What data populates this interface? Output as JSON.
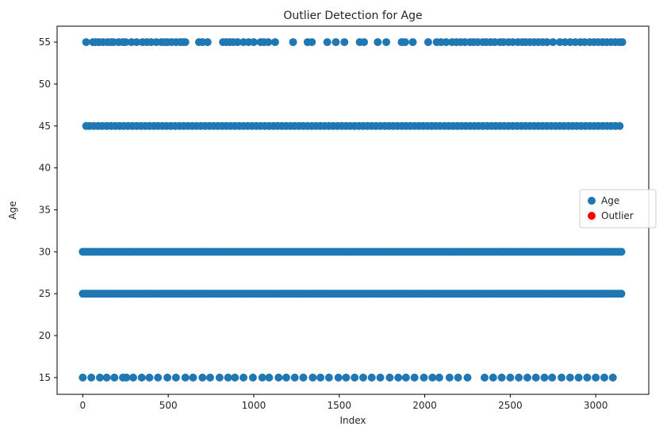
{
  "chart_data": {
    "type": "scatter",
    "title": "Outlier Detection for Age",
    "xlabel": "Index",
    "ylabel": "Age",
    "xlim": [
      -150,
      3310
    ],
    "ylim": [
      13.0,
      56.9
    ],
    "x_ticks": [
      0,
      500,
      1000,
      1500,
      2000,
      2500,
      3000
    ],
    "y_ticks": [
      15,
      20,
      25,
      30,
      35,
      40,
      45,
      50,
      55
    ],
    "grid": false,
    "legend_position": "center-right",
    "series": [
      {
        "name": "Age",
        "color": "#1f77b4",
        "marker": "circle",
        "y_levels": [
          {
            "y": 55,
            "x": [
              20,
              60,
              75,
              95,
              120,
              145,
              165,
              180,
              210,
              235,
              250,
              285,
              315,
              350,
              375,
              400,
              430,
              460,
              480,
              495,
              520,
              545,
              570,
              585,
              600,
              680,
              700,
              730,
              820,
              840,
              860,
              880,
              905,
              940,
              970,
              1000,
              1040,
              1060,
              1085,
              1125,
              1230,
              1315,
              1340,
              1430,
              1480,
              1530,
              1620,
              1645,
              1725,
              1775,
              1865,
              1885,
              1930,
              2020,
              2070,
              2095,
              2125,
              2160,
              2185,
              2210,
              2235,
              2265,
              2285,
              2310,
              2340,
              2360,
              2385,
              2410,
              2440,
              2460,
              2490,
              2515,
              2545,
              2570,
              2590,
              2615,
              2640,
              2665,
              2690,
              2715,
              2750,
              2790,
              2820,
              2850,
              2880,
              2910,
              2935,
              2965,
              2990,
              3015,
              3040,
              3065,
              3090,
              3115,
              3140,
              3155
            ]
          },
          {
            "y": 45,
            "x": [
              20,
              40,
              65,
              90,
              115,
              140,
              165,
              190,
              215,
              240,
              265,
              290,
              315,
              340,
              365,
              390,
              415,
              440,
              465,
              490,
              515,
              540,
              565,
              590,
              615,
              640,
              665,
              690,
              715,
              740,
              765,
              790,
              815,
              840,
              865,
              890,
              915,
              940,
              965,
              990,
              1015,
              1040,
              1065,
              1090,
              1115,
              1140,
              1165,
              1190,
              1215,
              1240,
              1265,
              1290,
              1315,
              1340,
              1365,
              1390,
              1415,
              1440,
              1465,
              1490,
              1515,
              1540,
              1565,
              1590,
              1615,
              1640,
              1665,
              1690,
              1715,
              1740,
              1765,
              1790,
              1815,
              1840,
              1865,
              1890,
              1915,
              1940,
              1965,
              1990,
              2015,
              2040,
              2065,
              2090,
              2115,
              2140,
              2165,
              2190,
              2215,
              2240,
              2265,
              2290,
              2315,
              2340,
              2365,
              2390,
              2415,
              2440,
              2465,
              2490,
              2515,
              2540,
              2565,
              2590,
              2615,
              2640,
              2665,
              2690,
              2715,
              2740,
              2765,
              2790,
              2815,
              2840,
              2865,
              2890,
              2915,
              2940,
              2965,
              2990,
              3015,
              3040,
              3065,
              3090,
              3115,
              3140
            ]
          },
          {
            "y": 30,
            "x": [
              0,
              15,
              30,
              45,
              60,
              75,
              90,
              105,
              120,
              135,
              150,
              165,
              180,
              195,
              210,
              225,
              240,
              255,
              270,
              285,
              300,
              315,
              330,
              345,
              360,
              375,
              390,
              405,
              420,
              435,
              450,
              465,
              480,
              495,
              510,
              525,
              540,
              555,
              570,
              585,
              600,
              615,
              630,
              645,
              660,
              675,
              690,
              705,
              720,
              735,
              750,
              765,
              780,
              795,
              810,
              825,
              840,
              855,
              870,
              885,
              900,
              915,
              930,
              945,
              960,
              975,
              990,
              1005,
              1020,
              1035,
              1050,
              1065,
              1080,
              1095,
              1110,
              1125,
              1140,
              1155,
              1170,
              1185,
              1200,
              1215,
              1230,
              1245,
              1260,
              1275,
              1290,
              1305,
              1320,
              1335,
              1350,
              1365,
              1380,
              1395,
              1410,
              1425,
              1440,
              1455,
              1470,
              1485,
              1500,
              1515,
              1530,
              1545,
              1560,
              1575,
              1590,
              1605,
              1620,
              1635,
              1650,
              1665,
              1680,
              1695,
              1710,
              1725,
              1740,
              1755,
              1770,
              1785,
              1800,
              1815,
              1830,
              1845,
              1860,
              1875,
              1890,
              1905,
              1920,
              1935,
              1950,
              1965,
              1980,
              1995,
              2010,
              2025,
              2040,
              2055,
              2070,
              2085,
              2100,
              2115,
              2130,
              2145,
              2160,
              2175,
              2190,
              2205,
              2220,
              2235,
              2250,
              2265,
              2280,
              2295,
              2310,
              2325,
              2340,
              2355,
              2370,
              2385,
              2400,
              2415,
              2430,
              2445,
              2460,
              2475,
              2490,
              2505,
              2520,
              2535,
              2550,
              2565,
              2580,
              2595,
              2610,
              2625,
              2640,
              2655,
              2670,
              2685,
              2700,
              2715,
              2730,
              2745,
              2760,
              2775,
              2790,
              2805,
              2820,
              2835,
              2850,
              2865,
              2880,
              2895,
              2910,
              2925,
              2940,
              2955,
              2970,
              2985,
              3000,
              3015,
              3030,
              3045,
              3060,
              3075,
              3090,
              3105,
              3120,
              3135,
              3150
            ]
          },
          {
            "y": 25,
            "x": [
              0,
              15,
              30,
              45,
              60,
              75,
              90,
              105,
              120,
              135,
              150,
              165,
              180,
              195,
              210,
              225,
              240,
              255,
              270,
              285,
              300,
              315,
              330,
              345,
              360,
              375,
              390,
              405,
              420,
              435,
              450,
              465,
              480,
              495,
              510,
              525,
              540,
              555,
              570,
              585,
              600,
              615,
              630,
              645,
              660,
              675,
              690,
              705,
              720,
              735,
              750,
              765,
              780,
              795,
              810,
              825,
              840,
              855,
              870,
              885,
              900,
              915,
              930,
              945,
              960,
              975,
              990,
              1005,
              1020,
              1035,
              1050,
              1065,
              1080,
              1095,
              1110,
              1125,
              1140,
              1155,
              1170,
              1185,
              1200,
              1215,
              1230,
              1245,
              1260,
              1275,
              1290,
              1305,
              1320,
              1335,
              1350,
              1365,
              1380,
              1395,
              1410,
              1425,
              1440,
              1455,
              1470,
              1485,
              1500,
              1515,
              1530,
              1545,
              1560,
              1575,
              1590,
              1605,
              1620,
              1635,
              1650,
              1665,
              1680,
              1695,
              1710,
              1725,
              1740,
              1755,
              1770,
              1785,
              1800,
              1815,
              1830,
              1845,
              1860,
              1875,
              1890,
              1905,
              1920,
              1935,
              1950,
              1965,
              1980,
              1995,
              2010,
              2025,
              2040,
              2055,
              2070,
              2085,
              2100,
              2115,
              2130,
              2145,
              2160,
              2175,
              2190,
              2205,
              2220,
              2235,
              2250,
              2265,
              2280,
              2295,
              2310,
              2325,
              2340,
              2355,
              2370,
              2385,
              2400,
              2415,
              2430,
              2445,
              2460,
              2475,
              2490,
              2505,
              2520,
              2535,
              2550,
              2565,
              2580,
              2595,
              2610,
              2625,
              2640,
              2655,
              2670,
              2685,
              2700,
              2715,
              2730,
              2745,
              2760,
              2775,
              2790,
              2805,
              2820,
              2835,
              2850,
              2865,
              2880,
              2895,
              2910,
              2925,
              2940,
              2955,
              2970,
              2985,
              3000,
              3015,
              3030,
              3045,
              3060,
              3075,
              3090,
              3105,
              3120,
              3135,
              3150
            ]
          },
          {
            "y": 15,
            "x": [
              0,
              50,
              100,
              140,
              185,
              235,
              255,
              295,
              345,
              390,
              440,
              495,
              545,
              600,
              645,
              700,
              745,
              800,
              850,
              890,
              940,
              995,
              1050,
              1090,
              1145,
              1190,
              1240,
              1290,
              1345,
              1390,
              1440,
              1495,
              1540,
              1590,
              1640,
              1690,
              1740,
              1795,
              1845,
              1890,
              1940,
              1995,
              2045,
              2085,
              2145,
              2195,
              2250,
              2350,
              2400,
              2450,
              2500,
              2550,
              2600,
              2650,
              2700,
              2745,
              2800,
              2850,
              2900,
              2950,
              3000,
              3050,
              3100
            ]
          }
        ]
      },
      {
        "name": "Outlier",
        "color": "#ff0000",
        "marker": "circle",
        "points": []
      }
    ]
  }
}
